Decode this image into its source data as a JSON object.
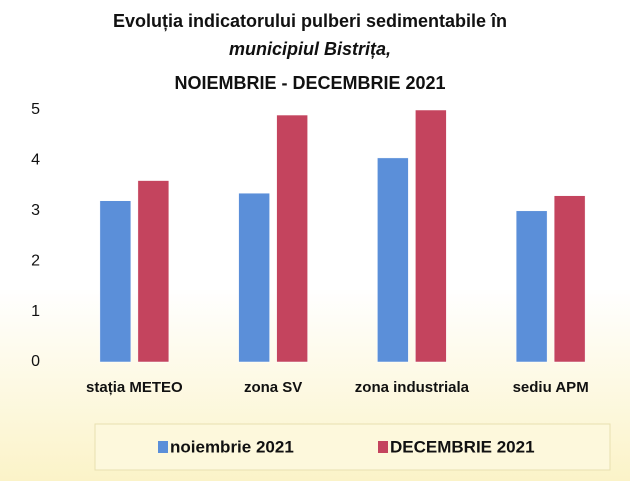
{
  "chart_data": {
    "type": "bar",
    "title": [
      "Evoluția indicatorului pulberi sedimentabile în",
      "municipiul Bistrița,",
      "NOIEMBRIE - DECEMBRIE 2021"
    ],
    "categories": [
      "stația METEO",
      "zona SV",
      "zona industriala",
      "sediu APM"
    ],
    "series": [
      {
        "name": "noiembrie 2021",
        "color": "#5b8fd9",
        "values": [
          3.2,
          3.35,
          4.05,
          3.0
        ]
      },
      {
        "name": "DECEMBRIE 2021",
        "color": "#c4445e",
        "values": [
          3.6,
          4.9,
          5.0,
          3.3
        ]
      }
    ],
    "ylim": [
      0,
      5
    ],
    "yticks": [
      0,
      1,
      2,
      3,
      4,
      5
    ],
    "grid": false,
    "legend": "bottom"
  }
}
